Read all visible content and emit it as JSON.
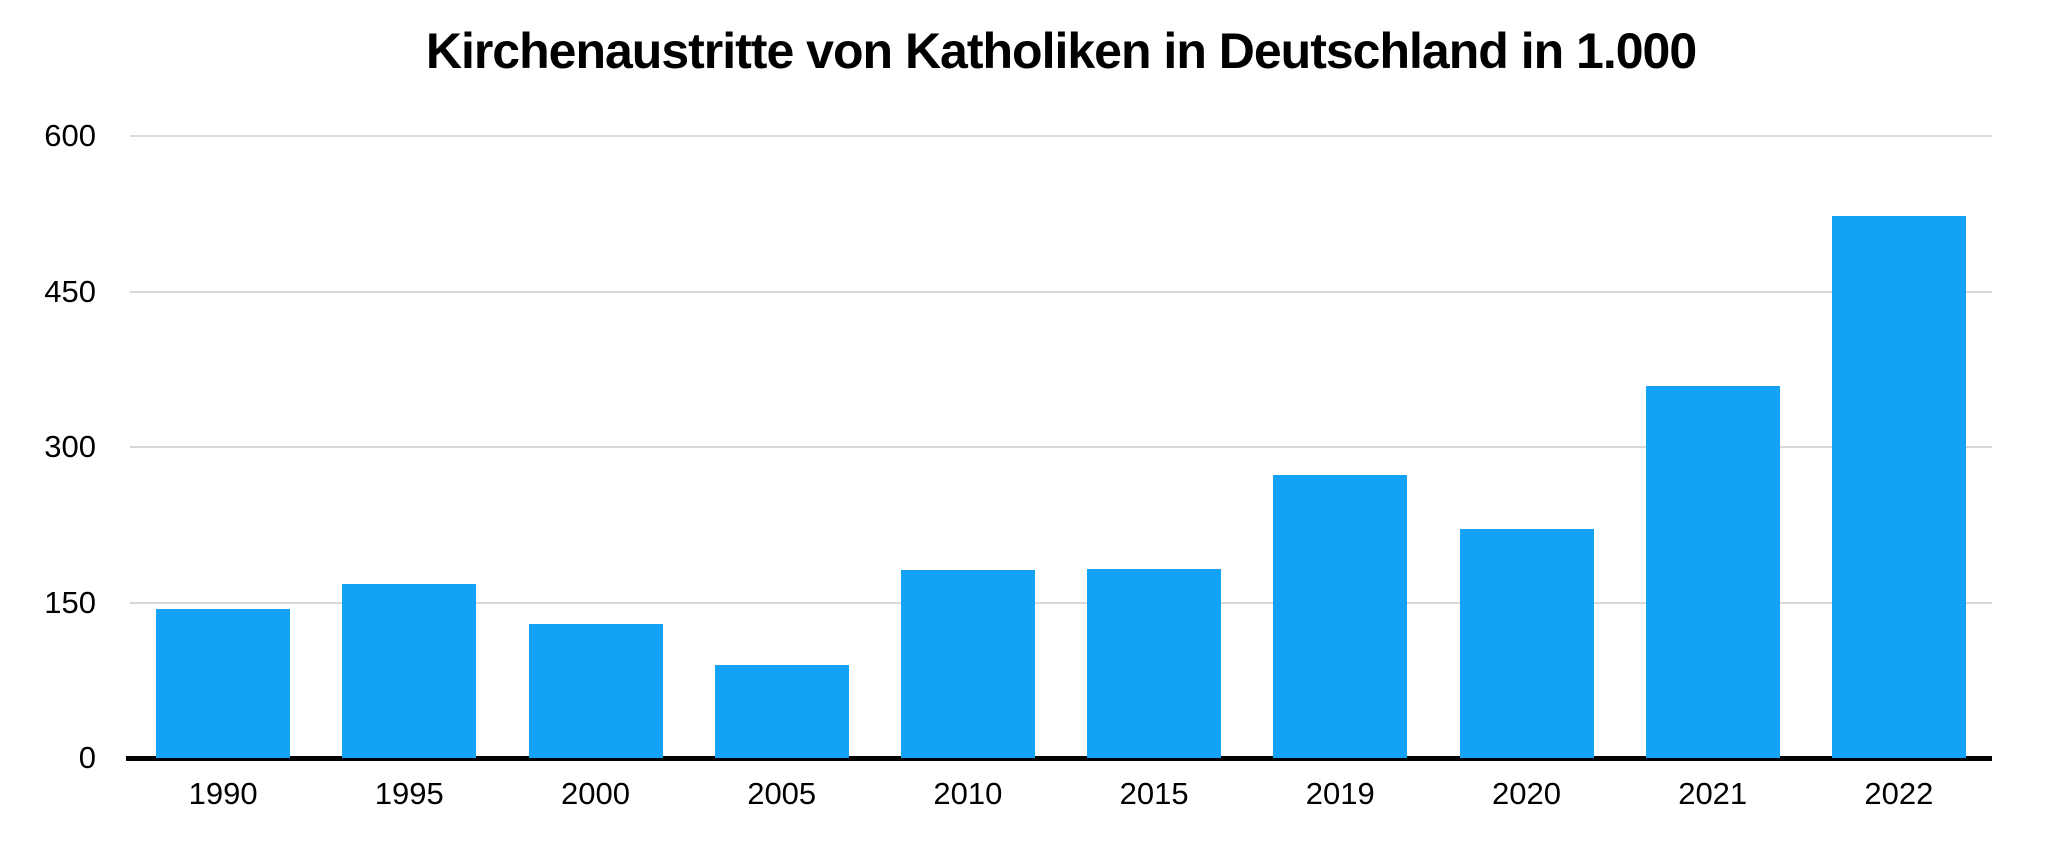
{
  "chart_data": {
    "type": "bar",
    "title": "Kirchenaustritte von Katholiken in Deutschland in 1.000",
    "categories": [
      "1990",
      "1995",
      "2000",
      "2005",
      "2010",
      "2015",
      "2019",
      "2020",
      "2021",
      "2022"
    ],
    "values": [
      144,
      168,
      129,
      90,
      181,
      182,
      273,
      221,
      359,
      523
    ],
    "xlabel": "",
    "ylabel": "",
    "ylim": [
      0,
      600
    ],
    "yticks": [
      0,
      150,
      300,
      450,
      600
    ],
    "grid": true,
    "legend_position": "none",
    "colors": {
      "bar": "#14A2F6",
      "grid": "#D9D9D9",
      "axis": "#000000",
      "text": "#000000",
      "background": "#FFFFFF"
    }
  }
}
